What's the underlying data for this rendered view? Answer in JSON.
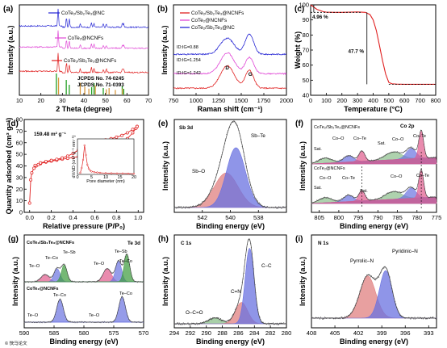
{
  "chart_data": [
    {
      "panel": "(a)",
      "type": "line",
      "xlabel": "2 Theta (degree)",
      "ylabel": "Intensity (a.u.)",
      "xlim": [
        10,
        70
      ],
      "xticks": [
        "10",
        "20",
        "30",
        "40",
        "50",
        "60",
        "70"
      ],
      "series": [
        {
          "name": "CoTe₂/Sb₂Te₃@NC",
          "color": "#2626d4"
        },
        {
          "name": "CoTe₂@NCNFs",
          "color": "#e048d6"
        },
        {
          "name": "CoTe₂/Sb₂Te₃@NCNFs",
          "color": "#e02020"
        }
      ],
      "references": [
        {
          "name": "JCPDS No. 74-0245",
          "color": "#22a022",
          "peaks": [
            27.2,
            31.8,
            33.2,
            43.6,
            44.7,
            49.0,
            57.8,
            58.5
          ]
        },
        {
          "name": "JCPDS No. 71-0393",
          "color": "#d89a40",
          "peaks": [
            28.2,
            38.3,
            40.4,
            42.3,
            45.3,
            50.4,
            51.7,
            54.6,
            57.9
          ]
        }
      ]
    },
    {
      "panel": "(b)",
      "type": "line",
      "xlabel": "Raman shift (cm⁻¹)",
      "ylabel": "Intensity (a.u.)",
      "xlim": [
        750,
        2000
      ],
      "xticks": [
        "750",
        "1000",
        "1250",
        "1500",
        "1750",
        "2000"
      ],
      "series": [
        {
          "name": "CoTe₂/Sb₂Te₃@NCNFs",
          "color": "#e02020",
          "ratio": "ID/IG=1.242"
        },
        {
          "name": "CoTe₂@NCNFs",
          "color": "#e048d6",
          "ratio": "ID/IG=1.254"
        },
        {
          "name": "CoTe₂/Sb₂Te₃@NC",
          "color": "#2626d4",
          "ratio": "ID/IG=0.88"
        }
      ],
      "ratio_labels": [
        "ID:IG=0.88",
        "ID:IG=1.254",
        "ID:IG=1.242"
      ],
      "peak_labels": [
        "D",
        "G"
      ]
    },
    {
      "panel": "(c)",
      "type": "line",
      "xlabel": "Temperature (°C)",
      "ylabel": "Weight (%)",
      "xlim": [
        0,
        800
      ],
      "ylim": [
        40,
        100
      ],
      "xticks": [
        "0",
        "100",
        "200",
        "300",
        "400",
        "500",
        "600",
        "700",
        "800"
      ],
      "yticks": [
        "40",
        "50",
        "60",
        "70",
        "80",
        "90",
        "100"
      ],
      "x": [
        0,
        40,
        80,
        100,
        150,
        200,
        250,
        300,
        350,
        380,
        400,
        420,
        440,
        460,
        480,
        500,
        520,
        550,
        600,
        700,
        800
      ],
      "y": [
        100,
        97,
        95.5,
        95.1,
        95.0,
        95.0,
        95.1,
        95.3,
        95.0,
        93.5,
        90,
        83,
        73,
        63,
        54,
        48.5,
        47.6,
        47.4,
        47.3,
        47.3,
        47.3
      ],
      "annotations": [
        "4.96 %",
        "47.7 %"
      ],
      "color": "#e02020"
    },
    {
      "panel": "(d)",
      "type": "scatter",
      "xlabel": "Relative pressure (P/P₀)",
      "ylabel": "Quantity adsorbed (cm³ g⁻¹)",
      "xlim": [
        -0.05,
        1.05
      ],
      "ylim": [
        0,
        80
      ],
      "xticks": [
        "0.0",
        "0.2",
        "0.4",
        "0.6",
        "0.8",
        "1.0"
      ],
      "yticks": [
        "0",
        "10",
        "20",
        "30",
        "40",
        "50",
        "60",
        "70",
        "80"
      ],
      "annotation": "159.48 m² g⁻¹",
      "adsorption_x": [
        0.0,
        0.01,
        0.02,
        0.04,
        0.06,
        0.08,
        0.1,
        0.15,
        0.2,
        0.25,
        0.3,
        0.35,
        0.4,
        0.45,
        0.5,
        0.55,
        0.6,
        0.65,
        0.7,
        0.75,
        0.8,
        0.85,
        0.9,
        0.95,
        0.98,
        0.99
      ],
      "adsorption_y": [
        8,
        28,
        34,
        38,
        40,
        41.2,
        42,
        43.3,
        44.2,
        45,
        45.8,
        46.5,
        47.2,
        47.9,
        48.7,
        49.5,
        50.5,
        51.6,
        53,
        54.7,
        57,
        60,
        63.5,
        68.5,
        72.5,
        74
      ],
      "desorption_x": [
        0.99,
        0.95,
        0.9,
        0.85,
        0.8,
        0.75,
        0.7,
        0.65,
        0.6,
        0.55,
        0.5,
        0.45,
        0.4,
        0.35,
        0.3,
        0.25,
        0.2,
        0.15,
        0.1,
        0.05
      ],
      "desorption_y": [
        74,
        71.5,
        68.5,
        66.3,
        64.8,
        63.5,
        62.4,
        61.2,
        59.8,
        58.2,
        56.3,
        53.8,
        50.8,
        48.5,
        46.9,
        45.7,
        44.8,
        43.9,
        42.6,
        40.5
      ],
      "inset": {
        "xlabel": "Pore diameter (nm)",
        "ylabel": "dV/dD (cm³ g⁻¹ nm⁻¹)",
        "xticks": [
          "0",
          "5",
          "10",
          "15",
          "20"
        ],
        "xlim": [
          0,
          20
        ],
        "x": [
          1.0,
          1.5,
          2.0,
          2.5,
          3.0,
          3.5,
          4.0,
          4.5,
          5.0,
          6,
          7,
          8,
          10,
          12,
          14,
          16,
          18,
          20
        ],
        "y": [
          0.05,
          0.2,
          0.45,
          0.9,
          0.6,
          0.3,
          0.18,
          0.12,
          0.09,
          0.07,
          0.06,
          0.05,
          0.04,
          0.035,
          0.03,
          0.03,
          0.025,
          0.02
        ]
      },
      "color": "#e02020"
    },
    {
      "panel": "(e)",
      "type": "area",
      "title": "Sb 3d",
      "xlabel": "Binding energy (eV)",
      "ylabel": "Intensity (a.u.)",
      "xlim": [
        544,
        536
      ],
      "xticks": [
        "542",
        "540",
        "538"
      ],
      "components": [
        {
          "name": "Sb–O",
          "center": 540.3,
          "fwhm": 2.0,
          "height": 0.45,
          "color": "#e08080"
        },
        {
          "name": "Sb–Te",
          "center": 539.6,
          "fwhm": 1.6,
          "height": 0.78,
          "color": "#6a72e0"
        }
      ]
    },
    {
      "panel": "(f)",
      "type": "area",
      "title": "Co 2p",
      "xlabel": "Binding energy (eV)",
      "ylabel": "Intensity (a.u.)",
      "xlim": [
        807,
        775
      ],
      "xticks": [
        "805",
        "800",
        "795",
        "790",
        "785",
        "780",
        "775"
      ],
      "subplots": [
        {
          "label": "CoTe₂/Sb₂Te₃@NCNFs",
          "peak_labels": [
            "Sat.",
            "Co–O",
            "Co–Te",
            "Sat.",
            "Co–O",
            "Co–Te"
          ]
        },
        {
          "label": "CoTe₂@NCNFs",
          "peak_labels": [
            "Co–O",
            "Co–Te",
            "Sat.",
            "Sat.",
            "Co–O",
            "Co–Te"
          ]
        }
      ]
    },
    {
      "panel": "(g)",
      "type": "area",
      "title": "Te 3d",
      "xlabel": "Binding energy (eV)",
      "ylabel": "Intensity (a.u.)",
      "xlim": [
        590,
        570
      ],
      "xticks": [
        "590",
        "585",
        "580",
        "575",
        "570"
      ],
      "subplots": [
        {
          "label": "CoTe₂/Sb₂Te₃@NCNFs",
          "peak_labels": [
            "Te–O",
            "Te–Co",
            "Te–Sb",
            "Te–O",
            "Te–Sb",
            "Te–Co"
          ]
        },
        {
          "label": "CoTe₂@NCNFs",
          "peak_labels": [
            "Te–O",
            "Te–Co",
            "Te–O",
            "Te–Co"
          ]
        }
      ]
    },
    {
      "panel": "(h)",
      "type": "area",
      "title": "C 1s",
      "xlabel": "Binding energy (eV)",
      "ylabel": "Intensity (a.u.)",
      "xlim": [
        294,
        280
      ],
      "xticks": [
        "294",
        "292",
        "290",
        "288",
        "286",
        "284",
        "282",
        "280"
      ],
      "components": [
        {
          "name": "O–C=O",
          "center": 288.9,
          "fwhm": 2.0,
          "height": 0.06,
          "color": "#8bbf8b"
        },
        {
          "name": "C=N",
          "center": 285.6,
          "fwhm": 1.8,
          "height": 0.22,
          "color": "#e08080"
        },
        {
          "name": "C–C",
          "center": 284.6,
          "fwhm": 1.3,
          "height": 0.78,
          "color": "#6a72e0"
        }
      ]
    },
    {
      "panel": "(i)",
      "type": "area",
      "title": "N 1s",
      "xlabel": "Binding energy (eV)",
      "ylabel": "Intensity (a.u.)",
      "xlim": [
        408,
        392
      ],
      "xticks": [
        "408",
        "405",
        "402",
        "399",
        "396",
        "393"
      ],
      "components": [
        {
          "name": "Pyrrolic–N",
          "center": 400.8,
          "fwhm": 2.4,
          "height": 0.55,
          "color": "#e08080"
        },
        {
          "name": "Pyridinic–N",
          "center": 398.5,
          "fwhm": 1.9,
          "height": 0.62,
          "color": "#6a72e0"
        }
      ]
    }
  ],
  "watermark": "© 快马论文"
}
